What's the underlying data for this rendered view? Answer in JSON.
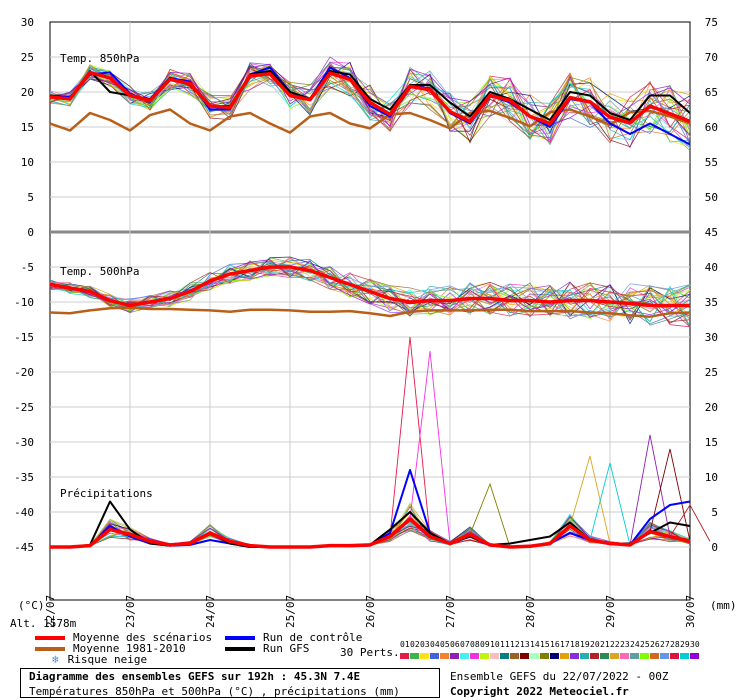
{
  "chart_data": {
    "type": "line",
    "title": "Diagramme des ensembles GEFS sur 192h : 45.3N 7.4E",
    "subtitle": "Températures 850hPa et 500hPa (°C) , précipitations (mm)",
    "left_axis_ticks": [
      "30",
      "25",
      "20",
      "15",
      "10",
      "5",
      "0",
      "-5",
      "-10",
      "-15",
      "-20",
      "-25",
      "-30",
      "-35",
      "-40",
      "-45"
    ],
    "right_axis_ticks": [
      "75",
      "70",
      "65",
      "60",
      "55",
      "50",
      "45",
      "40",
      "35",
      "30",
      "25",
      "20",
      "15",
      "10",
      "5",
      "0"
    ],
    "left_unit": "(°C)",
    "right_unit": "(mm)",
    "x_labels": [
      "22/07",
      "23/07",
      "24/07",
      "25/07",
      "26/07",
      "27/07",
      "28/07",
      "29/07",
      "30/07"
    ],
    "panel_labels": {
      "t850": "Temp. 850hPa",
      "t500": "Temp. 500hPa",
      "precip": "Précipitations"
    },
    "steps_per_day": 4,
    "series": {
      "t850_mean": [
        19.3,
        19,
        22.8,
        22,
        19.5,
        18.8,
        21.8,
        21.2,
        18,
        17.8,
        22.3,
        22.6,
        19.5,
        18.9,
        22.7,
        21.8,
        18.5,
        16.8,
        20.8,
        20.3,
        17.2,
        15.8,
        19.5,
        18.8,
        16.5,
        15.5,
        19.2,
        18.6,
        16.4,
        15.6,
        18,
        16.9,
        15.8
      ],
      "t850_control": [
        19.5,
        19.3,
        22.5,
        22.8,
        19.8,
        18.6,
        22,
        21.5,
        17.5,
        17.5,
        22.5,
        23.5,
        20,
        19,
        23.5,
        22,
        18,
        16.5,
        21,
        20.5,
        17,
        15.5,
        19.5,
        18.5,
        16.5,
        15,
        19,
        18.5,
        15.5,
        14,
        15.5,
        14,
        12.5
      ],
      "t850_gfs": [
        19.5,
        19,
        23,
        20,
        19.5,
        19,
        22,
        21,
        18,
        18,
        22.5,
        23,
        20,
        19,
        23,
        22.5,
        19,
        17.5,
        21,
        21,
        18.5,
        16.5,
        20,
        19,
        17.5,
        16,
        20,
        19.5,
        17,
        16,
        19.5,
        19.5,
        17
      ],
      "t850_clim": [
        15.5,
        14.5,
        17,
        16,
        14.5,
        16.7,
        17.5,
        15.5,
        14.5,
        16.5,
        17,
        15.5,
        14.2,
        16.5,
        17,
        15.5,
        14.8,
        16.8,
        17,
        16,
        14.8,
        17,
        17.3,
        16.3,
        15.1,
        17.1,
        17.5,
        16.5,
        15.3,
        17.1,
        17.3,
        16.5,
        15.5
      ],
      "t500_mean": [
        -7.5,
        -8,
        -8.5,
        -9.8,
        -10.5,
        -10,
        -9.5,
        -8.5,
        -7,
        -6,
        -5.5,
        -5,
        -5,
        -5.5,
        -6.5,
        -7.5,
        -8.5,
        -9.5,
        -10,
        -9.8,
        -9.8,
        -9.5,
        -9.5,
        -9.8,
        -9.8,
        -10,
        -9.8,
        -9.8,
        -10,
        -10.2,
        -10.5,
        -10.5,
        -10.5
      ],
      "t500_clim": [
        -11.5,
        -11.6,
        -11.2,
        -10.9,
        -10.8,
        -11,
        -11,
        -11.1,
        -11.2,
        -11.4,
        -11.1,
        -11.1,
        -11.2,
        -11.4,
        -11.4,
        -11.3,
        -11.6,
        -12,
        -11.4,
        -11.2,
        -11.2,
        -11.2,
        -11.1,
        -11.1,
        -11.3,
        -11.3,
        -11.3,
        -11.5,
        -11.6,
        -11.9,
        -12.1,
        -11.6,
        -11.5
      ],
      "precip_mean": [
        0,
        0,
        0.2,
        2.5,
        1.8,
        0.8,
        0.3,
        0.5,
        2,
        0.8,
        0.2,
        0,
        0,
        0,
        0.2,
        0.2,
        0.3,
        1.5,
        4,
        1.5,
        0.5,
        1.8,
        0.3,
        0,
        0.1,
        0.5,
        3,
        1,
        0.5,
        0.3,
        2.2,
        1.5,
        0.8
      ],
      "precip_control": [
        0,
        0,
        0.1,
        3,
        1.5,
        0.5,
        0.2,
        0.3,
        1,
        0.5,
        0,
        0,
        0,
        0,
        0.2,
        0.1,
        0.2,
        2,
        11,
        2,
        0.5,
        1.5,
        0.2,
        0,
        0.2,
        0.5,
        2,
        1,
        0.5,
        0.3,
        4,
        6,
        6.5
      ],
      "precip_gfs": [
        0,
        0,
        0.3,
        6.5,
        2.5,
        0.5,
        0.2,
        0.5,
        2,
        0.5,
        0,
        0,
        0,
        0,
        0.2,
        0.2,
        0.3,
        2.5,
        5,
        2,
        0.5,
        1.5,
        0.3,
        0.5,
        1,
        1.5,
        3.5,
        1,
        0.5,
        0.5,
        2,
        3.5,
        3
      ],
      "precip_spikes": [
        [
          18,
          30
        ],
        [
          19,
          28
        ],
        [
          22,
          9
        ],
        [
          27,
          13
        ],
        [
          28,
          12
        ],
        [
          30,
          16
        ],
        [
          31,
          14
        ],
        [
          32,
          6
        ]
      ]
    },
    "legend": {
      "mean": "Moyenne des scénarios",
      "clim": "Moyenne 1981-2010",
      "snow": "Risque neige",
      "control": "Run de contrôle",
      "gfs": "Run GFS"
    },
    "member_labels": [
      "01",
      "02",
      "03",
      "04",
      "05",
      "06",
      "07",
      "08",
      "09",
      "10",
      "11",
      "12",
      "13",
      "14",
      "15",
      "16",
      "17",
      "18",
      "19",
      "20",
      "21",
      "22",
      "23",
      "24",
      "25",
      "26",
      "27",
      "28",
      "29",
      "30"
    ],
    "member_colors": [
      "#e6194b",
      "#3cb44b",
      "#ffe119",
      "#4363d8",
      "#f58231",
      "#911eb4",
      "#46f0f0",
      "#f032e6",
      "#bcf60c",
      "#fabebe",
      "#008080",
      "#9a6324",
      "#800000",
      "#aaffc3",
      "#808000",
      "#000075",
      "#e6a000",
      "#8a2be2",
      "#20b2aa",
      "#b22222",
      "#2e8b57",
      "#daa520",
      "#ff69b4",
      "#5f9ea0",
      "#7fff00",
      "#d2691e",
      "#6495ed",
      "#dc143c",
      "#00ced1",
      "#9400d3"
    ],
    "colors": {
      "mean": "#ff0000",
      "clim": "#b8601a",
      "control": "#0000ff",
      "gfs": "#000000"
    }
  },
  "alt_label": "Alt. 1578m",
  "perts_label": "30 Perts.",
  "run_label": "Ensemble GEFS du 22/07/2022 - 00Z",
  "copyright": "Copyright 2022 Meteociel.fr"
}
